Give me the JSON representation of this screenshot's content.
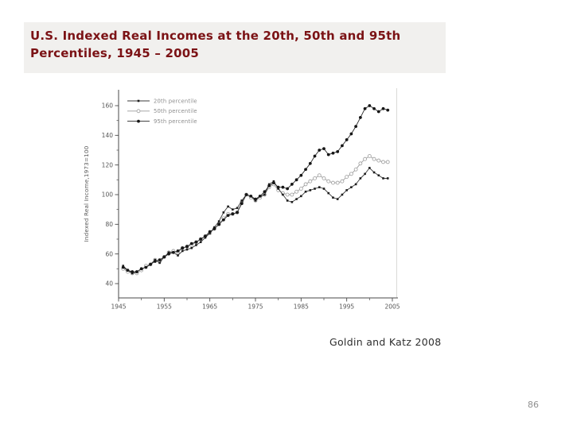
{
  "slide": {
    "title_lines": [
      "U.S. Indexed Real Incomes at the 20th, 50th and 95th",
      "Percentiles, 1945 – 2005"
    ],
    "title_color": "#7b1215",
    "title_bg": "#f1f0ee",
    "attribution": "Goldin and Katz 2008",
    "page_number": "86"
  },
  "chart_data": {
    "type": "line",
    "title": "",
    "xlabel": "",
    "ylabel": "Indexed Real Income,1973=100",
    "xlim": [
      1945,
      2007
    ],
    "ylim": [
      34,
      170
    ],
    "x_ticks": [
      1945,
      1955,
      1965,
      1975,
      1985,
      1995,
      2005
    ],
    "x_minor_ticks": [
      1950,
      1960,
      1970,
      1980,
      1990,
      2000
    ],
    "y_ticks": [
      40,
      60,
      80,
      100,
      120,
      140,
      160
    ],
    "y_minor_ticks": [
      50,
      70,
      90,
      110,
      130,
      150
    ],
    "grid": false,
    "legend_position": "upper-left-inside",
    "x": [
      1946,
      1947,
      1948,
      1949,
      1950,
      1951,
      1952,
      1953,
      1954,
      1955,
      1956,
      1957,
      1958,
      1959,
      1960,
      1961,
      1962,
      1963,
      1964,
      1965,
      1966,
      1967,
      1968,
      1969,
      1970,
      1971,
      1972,
      1973,
      1974,
      1975,
      1976,
      1977,
      1978,
      1979,
      1980,
      1981,
      1982,
      1983,
      1984,
      1985,
      1986,
      1987,
      1988,
      1989,
      1990,
      1991,
      1992,
      1993,
      1994,
      1995,
      1996,
      1997,
      1998,
      1999,
      2000,
      2001,
      2002,
      2003,
      2004
    ],
    "series": [
      {
        "name": "20th percentile",
        "marker": "filled-square",
        "line_color": "#3a3a3a",
        "marker_color": "#1c1c1c",
        "values": [
          52,
          49,
          47,
          48,
          50,
          51,
          53,
          56,
          54,
          58,
          61,
          61,
          59,
          62,
          63,
          64,
          66,
          68,
          71,
          74,
          78,
          82,
          88,
          92,
          90,
          91,
          96,
          100,
          99,
          96,
          99,
          100,
          107,
          109,
          104,
          100,
          96,
          95,
          97,
          99,
          102,
          103,
          104,
          105,
          104,
          101,
          98,
          97,
          100,
          103,
          105,
          107,
          111,
          114,
          118,
          115,
          113,
          111,
          111
        ]
      },
      {
        "name": "50th percentile",
        "marker": "open-circle",
        "line_color": "#9b9b9b",
        "marker_color": "#ffffff",
        "values": [
          50,
          48,
          47,
          47,
          49,
          52,
          53,
          56,
          55,
          58,
          61,
          62,
          61,
          64,
          65,
          66,
          68,
          70,
          72,
          74,
          77,
          80,
          84,
          87,
          87,
          88,
          95,
          100,
          98,
          96,
          98,
          100,
          105,
          107,
          103,
          101,
          100,
          100,
          102,
          104,
          107,
          109,
          111,
          113,
          111,
          109,
          108,
          108,
          109,
          112,
          114,
          117,
          121,
          124,
          126,
          124,
          123,
          122,
          122
        ]
      },
      {
        "name": "95th percentile",
        "marker": "filled-circle",
        "line_color": "#2a2a2a",
        "marker_color": "#161616",
        "values": [
          51,
          49,
          48,
          48,
          50,
          51,
          53,
          55,
          56,
          58,
          60,
          61,
          62,
          64,
          65,
          67,
          68,
          70,
          72,
          75,
          77,
          80,
          83,
          86,
          87,
          88,
          94,
          100,
          99,
          97,
          99,
          102,
          106,
          108,
          105,
          105,
          104,
          107,
          110,
          113,
          117,
          121,
          126,
          130,
          131,
          127,
          128,
          129,
          133,
          137,
          141,
          146,
          152,
          158,
          160,
          158,
          156,
          158,
          157
        ]
      }
    ]
  }
}
